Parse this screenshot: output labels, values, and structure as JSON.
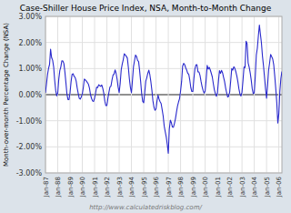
{
  "chart_data": {
    "type": "line",
    "title": "Case-Shiller House Price Index, NSA, Month-to-Month Change",
    "ylabel": "Month-over-month Percentage Change (NSA)",
    "annotations": [
      "http://www.calculatedriskblog.com/"
    ],
    "color": "#2929cc",
    "grid": true,
    "ylim": [
      -3.0,
      3.0
    ],
    "yticks": [
      {
        "value": -3.0,
        "label": "-3.00%"
      },
      {
        "value": -2.0,
        "label": "-2.00%"
      },
      {
        "value": -1.0,
        "label": "-1.00%"
      },
      {
        "value": 0.0,
        "label": "0.00%"
      },
      {
        "value": 1.0,
        "label": "1.00%"
      },
      {
        "value": 2.0,
        "label": "2.00%"
      },
      {
        "value": 3.0,
        "label": "3.00%"
      }
    ],
    "categories": [
      "Jan-87",
      null,
      null,
      null,
      null,
      null,
      null,
      null,
      null,
      null,
      null,
      null,
      "Jan-88",
      null,
      null,
      null,
      null,
      null,
      null,
      null,
      null,
      null,
      null,
      null,
      "Jan-89",
      null,
      null,
      null,
      null,
      null,
      null,
      null,
      null,
      null,
      null,
      null,
      "Jan-90",
      null,
      null,
      null,
      null,
      null,
      null,
      null,
      null,
      null,
      null,
      null,
      "Jan-91",
      null,
      null,
      null,
      null,
      null,
      null,
      null,
      null,
      null,
      null,
      null,
      "Jan-92",
      null,
      null,
      null,
      null,
      null,
      null,
      null,
      null,
      null,
      null,
      null,
      "Jan-93",
      null,
      null,
      null,
      null,
      null,
      null,
      null,
      null,
      null,
      null,
      null,
      "Jan-94",
      null,
      null,
      null,
      null,
      null,
      null,
      null,
      null,
      null,
      null,
      null,
      "Jan-95",
      null,
      null,
      null,
      null,
      null,
      null,
      null,
      null,
      null,
      null,
      null,
      "Jan-96",
      null,
      null,
      null,
      null,
      null,
      null,
      null,
      null,
      null,
      null,
      null,
      "Jan-97",
      null,
      null,
      null,
      null,
      null,
      null,
      null,
      null,
      null,
      null,
      null,
      "Jan-98",
      null,
      null,
      null,
      null,
      null,
      null,
      null,
      null,
      null,
      null,
      null,
      "Jan-99",
      null,
      null,
      null,
      null,
      null,
      null,
      null,
      null,
      null,
      null,
      null,
      "Jan-00",
      null,
      null,
      null,
      null,
      null,
      null,
      null,
      null,
      null,
      null,
      null,
      "Jan-01",
      null,
      null,
      null,
      null,
      null,
      null,
      null,
      null,
      null,
      null,
      null,
      "Jan-02",
      null,
      null,
      null,
      null,
      null,
      null,
      null,
      null,
      null,
      null,
      null,
      "Jan-03",
      null,
      null,
      null,
      null,
      null,
      null,
      null,
      null,
      null,
      null,
      null,
      "Jan-04",
      null,
      null,
      null,
      null,
      null,
      null,
      null,
      null,
      null,
      null,
      null,
      "Jan-05",
      null,
      null,
      null,
      null,
      null,
      null,
      null,
      null,
      null,
      null,
      null,
      "Jan-06",
      null,
      null,
      null
    ],
    "values": [
      0.07,
      0.42,
      0.76,
      1.01,
      1.16,
      1.74,
      1.42,
      1.32,
      1.07,
      0.55,
      0.16,
      -0.05,
      0.07,
      0.59,
      0.92,
      1.06,
      1.3,
      1.29,
      1.19,
      0.86,
      0.45,
      0.01,
      -0.19,
      -0.19,
      0.07,
      0.49,
      0.78,
      0.8,
      0.7,
      0.66,
      0.52,
      0.26,
      0.05,
      -0.14,
      -0.17,
      -0.09,
      0.02,
      0.28,
      0.6,
      0.56,
      0.52,
      0.46,
      0.4,
      0.25,
      0.0,
      -0.14,
      -0.24,
      -0.26,
      -0.13,
      0.07,
      0.29,
      0.27,
      0.38,
      0.35,
      0.32,
      0.37,
      0.24,
      0.05,
      -0.25,
      -0.42,
      -0.42,
      -0.14,
      0.09,
      0.29,
      0.33,
      0.56,
      0.75,
      0.79,
      0.95,
      0.82,
      0.59,
      0.29,
      0.08,
      0.43,
      0.95,
      1.17,
      1.34,
      1.57,
      1.52,
      1.47,
      1.4,
      1.04,
      0.6,
      0.27,
      0.07,
      0.55,
      1.08,
      1.3,
      1.52,
      1.46,
      1.31,
      1.27,
      0.92,
      0.5,
      0.04,
      -0.26,
      -0.31,
      0.08,
      0.52,
      0.65,
      0.82,
      0.94,
      0.76,
      0.49,
      0.16,
      -0.24,
      -0.48,
      -0.6,
      -0.55,
      -0.24,
      -0.02,
      -0.17,
      -0.27,
      -0.34,
      -0.57,
      -0.82,
      -1.2,
      -1.42,
      -1.62,
      -1.91,
      -2.25,
      -1.32,
      -0.98,
      -1.07,
      -1.24,
      -1.25,
      -1.1,
      -0.92,
      -0.67,
      -0.44,
      -0.28,
      -0.15,
      0.14,
      0.5,
      1.09,
      1.2,
      1.15,
      1.03,
      0.94,
      0.82,
      0.78,
      0.56,
      0.27,
      0.12,
      0.12,
      0.6,
      0.99,
      1.14,
      1.15,
      0.87,
      0.87,
      0.74,
      0.51,
      0.31,
      0.16,
      0.06,
      0.13,
      0.58,
      1.12,
      0.98,
      1.05,
      0.95,
      0.82,
      0.68,
      0.42,
      0.19,
      0.04,
      -0.06,
      0.06,
      0.52,
      0.92,
      0.82,
      0.93,
      0.84,
      0.67,
      0.5,
      0.26,
      0.07,
      -0.09,
      -0.06,
      0.11,
      0.53,
      1.0,
      0.94,
      1.07,
      1.01,
      0.88,
      0.71,
      0.49,
      0.22,
      0.03,
      -0.05,
      0.09,
      0.56,
      1.06,
      1.04,
      2.05,
      1.95,
      1.22,
      1.06,
      0.84,
      0.57,
      0.23,
      0.04,
      0.07,
      0.72,
      1.52,
      1.78,
      2.25,
      2.67,
      2.32,
      1.98,
      1.48,
      1.11,
      0.67,
      0.23,
      -0.14,
      0.36,
      0.94,
      1.22,
      1.54,
      1.46,
      1.37,
      1.15,
      0.72,
      0.23,
      -0.31,
      -1.09,
      -0.73,
      0.14,
      0.62,
      0.89
    ]
  }
}
